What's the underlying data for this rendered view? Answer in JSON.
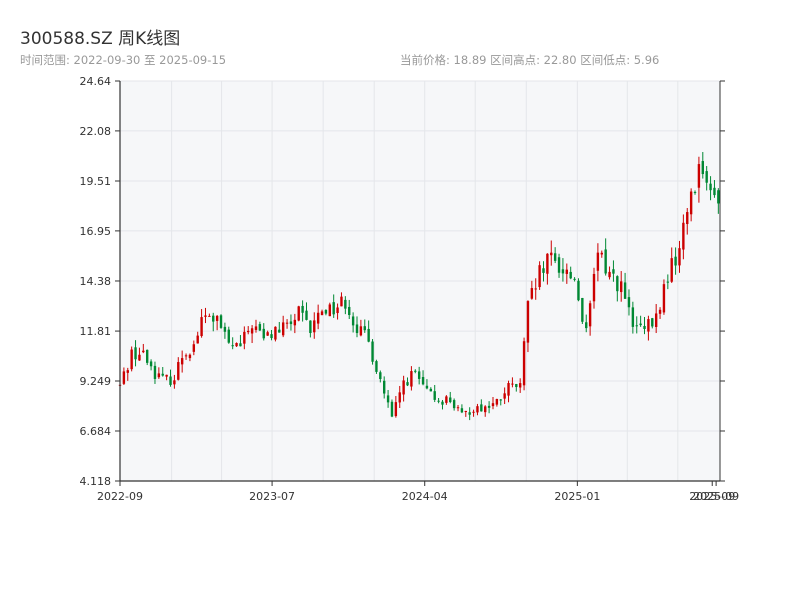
{
  "header": {
    "title": "300588.SZ 周K线图",
    "subtitle_left": "时间范围: 2022-09-30 至 2025-09-15",
    "subtitle_right": "当前价格: 18.89   区间高点: 22.80   区间低点: 5.96"
  },
  "chart_data": {
    "type": "candlestick",
    "title": "300588.SZ 周K线图",
    "date_range": [
      "2022-09-30",
      "2025-09-15"
    ],
    "current_price": 18.89,
    "period_high": 22.8,
    "period_low": 5.96,
    "ylim": [
      4.118,
      24.64
    ],
    "yticks": [
      4.118,
      6.684,
      9.249,
      11.81,
      14.38,
      16.95,
      19.51,
      22.08,
      24.64
    ],
    "ytick_labels": [
      "4.118",
      "6.684",
      "9.249",
      "11.81",
      "14.38",
      "16.95",
      "19.51",
      "22.08",
      "24.64"
    ],
    "xlim": [
      "2022-09-30",
      "2025-09-15"
    ],
    "xticks": [
      "2022-09-30",
      "2023-07-01",
      "2024-04-01",
      "2025-01-01",
      "2025-09-01",
      "2025-09-08"
    ],
    "xtick_labels": [
      "2022-09",
      "2023-07",
      "2024-04",
      "2025-01",
      "2025-09",
      "2025-09"
    ],
    "colors": {
      "up": "#cc0000",
      "down": "#008833",
      "plot_bg": "#f6f7f9",
      "grid": "#e4e6ea",
      "axis": "#333333"
    },
    "grid": true,
    "anchors": [
      [
        "2022-09-30",
        9.0
      ],
      [
        "2022-10-21",
        10.7
      ],
      [
        "2022-11-11",
        10.6
      ],
      [
        "2022-12-02",
        9.7
      ],
      [
        "2022-12-16",
        9.3
      ],
      [
        "2023-01-06",
        9.4
      ],
      [
        "2023-01-20",
        10.6
      ],
      [
        "2023-02-10",
        11.1
      ],
      [
        "2023-02-24",
        12.3
      ],
      [
        "2023-03-10",
        12.6
      ],
      [
        "2023-03-24",
        12.3
      ],
      [
        "2023-04-14",
        11.1
      ],
      [
        "2023-05-05",
        11.0
      ],
      [
        "2023-05-26",
        12.2
      ],
      [
        "2023-06-16",
        11.4
      ],
      [
        "2023-07-07",
        11.8
      ],
      [
        "2023-07-28",
        12.0
      ],
      [
        "2023-08-18",
        12.7
      ],
      [
        "2023-09-08",
        11.8
      ],
      [
        "2023-09-29",
        13.0
      ],
      [
        "2023-10-20",
        13.0
      ],
      [
        "2023-11-10",
        13.4
      ],
      [
        "2023-12-01",
        12.0
      ],
      [
        "2023-12-22",
        11.2
      ],
      [
        "2024-01-12",
        9.3
      ],
      [
        "2024-02-02",
        7.3
      ],
      [
        "2024-02-23",
        9.2
      ],
      [
        "2024-03-15",
        9.6
      ],
      [
        "2024-04-05",
        8.6
      ],
      [
        "2024-04-26",
        8.3
      ],
      [
        "2024-05-17",
        8.3
      ],
      [
        "2024-06-07",
        7.4
      ],
      [
        "2024-06-28",
        7.9
      ],
      [
        "2024-07-19",
        7.9
      ],
      [
        "2024-08-09",
        8.1
      ],
      [
        "2024-08-30",
        8.9
      ],
      [
        "2024-09-20",
        9.0
      ],
      [
        "2024-10-04",
        13.0
      ],
      [
        "2024-10-25",
        14.7
      ],
      [
        "2024-11-15",
        15.5
      ],
      [
        "2024-12-06",
        15.0
      ],
      [
        "2024-12-27",
        14.5
      ],
      [
        "2025-01-17",
        11.6
      ],
      [
        "2025-02-07",
        15.8
      ],
      [
        "2025-02-28",
        14.8
      ],
      [
        "2025-03-21",
        14.1
      ],
      [
        "2025-04-11",
        12.0
      ],
      [
        "2025-05-02",
        11.8
      ],
      [
        "2025-05-23",
        12.4
      ],
      [
        "2025-06-13",
        14.7
      ],
      [
        "2025-07-04",
        16.0
      ],
      [
        "2025-07-25",
        19.0
      ],
      [
        "2025-08-15",
        20.6
      ],
      [
        "2025-08-29",
        18.5
      ],
      [
        "2025-09-15",
        18.89
      ]
    ]
  }
}
